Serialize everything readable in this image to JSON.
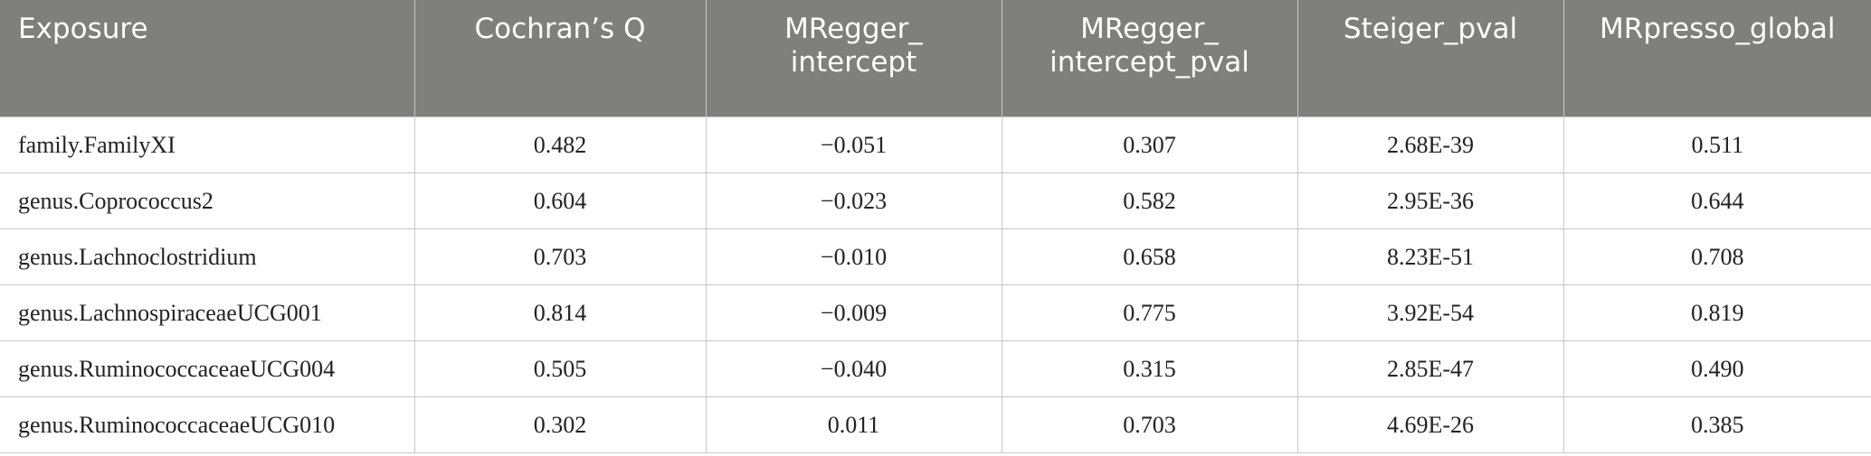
{
  "table": {
    "header": [
      "Exposure",
      "Cochran’s Q",
      "MRegger_\nintercept",
      "MRegger_\nintercept_pval",
      "Steiger_pval",
      "MRpresso_global"
    ],
    "rows": [
      [
        "family.FamilyXI",
        "0.482",
        "−0.051",
        "0.307",
        "2.68E-39",
        "0.511"
      ],
      [
        "genus.Coprococcus2",
        "0.604",
        "−0.023",
        "0.582",
        "2.95E-36",
        "0.644"
      ],
      [
        "genus.Lachnoclostridium",
        "0.703",
        "−0.010",
        "0.658",
        "8.23E-51",
        "0.708"
      ],
      [
        "genus.LachnospiraceaeUCG001",
        "0.814",
        "−0.009",
        "0.775",
        "3.92E-54",
        "0.819"
      ],
      [
        "genus.RuminococcaceaeUCG004",
        "0.505",
        "−0.040",
        "0.315",
        "2.85E-47",
        "0.490"
      ],
      [
        "genus.RuminococcaceaeUCG010",
        "0.302",
        "0.011",
        "0.703",
        "4.69E-26",
        "0.385"
      ]
    ]
  }
}
